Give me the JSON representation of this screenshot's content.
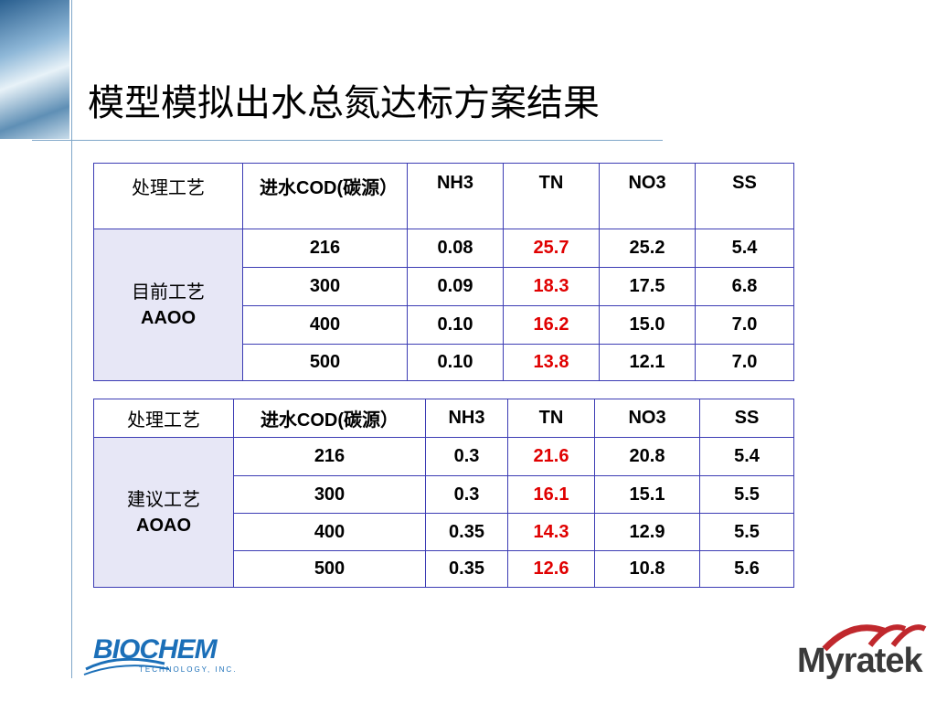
{
  "header": {
    "title": "模型模拟出水总氮达标方案结果"
  },
  "tables": [
    {
      "columns": [
        "处理工艺",
        "进水COD(碳源）",
        "NH3",
        "TN",
        "NO3",
        "SS"
      ],
      "group": [
        "目前工艺",
        "AAOO"
      ],
      "rows": [
        [
          "216",
          "0.08",
          "25.7",
          "25.2",
          "5.4"
        ],
        [
          "300",
          "0.09",
          "18.3",
          "17.5",
          "6.8"
        ],
        [
          "400",
          "0.10",
          "16.2",
          "15.0",
          "7.0"
        ],
        [
          "500",
          "0.10",
          "13.8",
          "12.1",
          "7.0"
        ]
      ]
    },
    {
      "columns": [
        "处理工艺",
        "进水COD(碳源）",
        "NH3",
        "TN",
        "NO3",
        "SS"
      ],
      "group": [
        "建议工艺",
        "AOAO"
      ],
      "rows": [
        [
          "216",
          "0.3",
          "21.6",
          "20.8",
          "5.4"
        ],
        [
          "300",
          "0.3",
          "16.1",
          "15.1",
          "5.5"
        ],
        [
          "400",
          "0.35",
          "14.3",
          "12.9",
          "5.5"
        ],
        [
          "500",
          "0.35",
          "12.6",
          "10.8",
          "5.6"
        ]
      ]
    }
  ],
  "logos": {
    "biochem": "BIOCHEM",
    "biochem_sub": "TECHNOLOGY, INC.",
    "myratek": "Myratek"
  }
}
